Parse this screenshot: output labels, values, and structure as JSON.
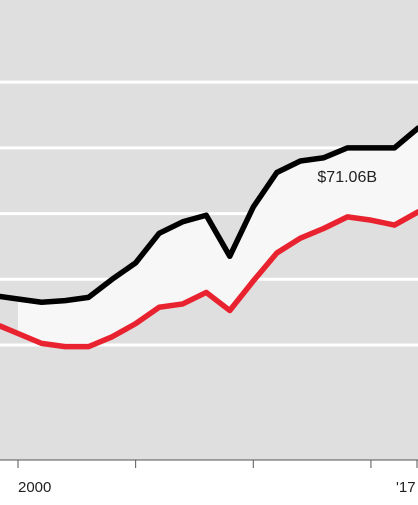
{
  "chart_data": {
    "type": "line",
    "x": [
      2000,
      2001,
      2002,
      2003,
      2004,
      2005,
      2006,
      2007,
      2008,
      2009,
      2010,
      2011,
      2012,
      2013,
      2014,
      2015,
      2016,
      2017
    ],
    "series": [
      {
        "color": "#000000",
        "values": [
          34,
          33,
          33.5,
          34.5,
          40,
          45,
          54,
          57.5,
          59.5,
          47,
          62,
          72.5,
          76,
          77,
          80,
          80,
          80,
          86
        ]
      },
      {
        "color": "#e8232f",
        "values": [
          23.5,
          20.5,
          19.5,
          19.5,
          22.5,
          26.5,
          31.5,
          32.5,
          36,
          30.5,
          39.5,
          48,
          52.5,
          55.5,
          59,
          58,
          56.5,
          60.5
        ]
      }
    ],
    "annotations": [
      {
        "text": "$71.06B",
        "x": 2014,
        "y": 71.06
      }
    ],
    "xticks": [
      2000,
      2005,
      2010,
      2015,
      2017
    ],
    "xtick_labels": [
      "2000",
      "'17"
    ],
    "yticks": [
      20,
      40,
      60,
      80,
      100
    ],
    "ylim": [
      -15,
      125
    ],
    "xlim": [
      2000,
      2017
    ],
    "grid": true,
    "fill_between_series": true,
    "colors": {
      "plot_bg": "#dfdfdf",
      "grid": "#ffffff",
      "band_fill": "#f7f7f7",
      "axis": "#555555"
    }
  }
}
